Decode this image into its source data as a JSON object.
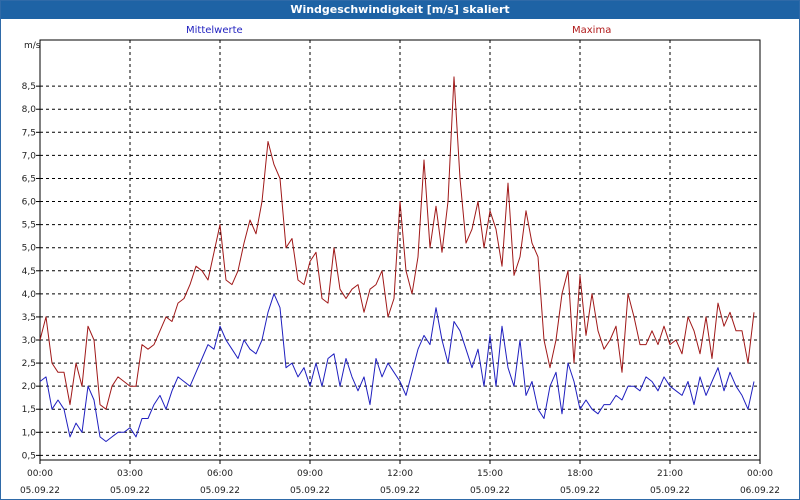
{
  "window": {
    "title": "Windgeschwindigkeit [m/s] skaliert"
  },
  "legend": {
    "mean": "Mittelwerte",
    "max": "Maxima"
  },
  "chart_data": {
    "type": "line",
    "title": "Windgeschwindigkeit [m/s] skaliert",
    "ylabel": "m/s",
    "xlabel": "",
    "ylim": [
      0.4,
      9.5
    ],
    "xlim": [
      0,
      24
    ],
    "grid": true,
    "legend_placement": "top",
    "y_ticks": [
      "0,5",
      "1,0",
      "1,5",
      "2,0",
      "2,5",
      "3,0",
      "3,5",
      "4,0",
      "4,5",
      "5,0",
      "5,5",
      "6,0",
      "6,5",
      "7,0",
      "7,5",
      "8,0",
      "8,5"
    ],
    "x_ticks": [
      {
        "time": "00:00",
        "date": "05.09.22"
      },
      {
        "time": "03:00",
        "date": "05.09.22"
      },
      {
        "time": "06:00",
        "date": "05.09.22"
      },
      {
        "time": "09:00",
        "date": "05.09.22"
      },
      {
        "time": "12:00",
        "date": "05.09.22"
      },
      {
        "time": "15:00",
        "date": "05.09.22"
      },
      {
        "time": "18:00",
        "date": "05.09.22"
      },
      {
        "time": "21:00",
        "date": "05.09.22"
      },
      {
        "time": "00:00",
        "date": "06.09.22"
      }
    ],
    "colors": {
      "mean": "#1f1fbf",
      "max": "#a01818",
      "grid": "#000000"
    },
    "series": [
      {
        "name": "Mittelwerte",
        "x": [
          0,
          0.2,
          0.4,
          0.6,
          0.8,
          1.0,
          1.2,
          1.4,
          1.6,
          1.8,
          2.0,
          2.2,
          2.4,
          2.6,
          2.8,
          3.0,
          3.2,
          3.4,
          3.6,
          3.8,
          4.0,
          4.2,
          4.4,
          4.6,
          4.8,
          5.0,
          5.2,
          5.4,
          5.6,
          5.8,
          6.0,
          6.2,
          6.4,
          6.6,
          6.8,
          7.0,
          7.2,
          7.4,
          7.6,
          7.8,
          8.0,
          8.2,
          8.4,
          8.6,
          8.8,
          9.0,
          9.2,
          9.4,
          9.6,
          9.8,
          10.0,
          10.2,
          10.4,
          10.6,
          10.8,
          11.0,
          11.2,
          11.4,
          11.6,
          11.8,
          12.0,
          12.2,
          12.4,
          12.6,
          12.8,
          13.0,
          13.2,
          13.4,
          13.6,
          13.8,
          14.0,
          14.2,
          14.4,
          14.6,
          14.8,
          15.0,
          15.2,
          15.4,
          15.6,
          15.8,
          16.0,
          16.2,
          16.4,
          16.6,
          16.8,
          17.0,
          17.2,
          17.4,
          17.6,
          17.8,
          18.0,
          18.2,
          18.4,
          18.6,
          18.8,
          19.0,
          19.2,
          19.4,
          19.6,
          19.8,
          20.0,
          20.2,
          20.4,
          20.6,
          20.8,
          21.0,
          21.2,
          21.4,
          21.6,
          21.8,
          22.0,
          22.2,
          22.4,
          22.6,
          22.8,
          23.0,
          23.2,
          23.4,
          23.6,
          23.8
        ],
        "values": [
          2.1,
          2.2,
          1.5,
          1.7,
          1.5,
          0.9,
          1.2,
          1.0,
          2.0,
          1.7,
          0.9,
          0.8,
          0.9,
          1.0,
          1.0,
          1.1,
          0.9,
          1.3,
          1.3,
          1.6,
          1.8,
          1.5,
          1.9,
          2.2,
          2.1,
          2.0,
          2.3,
          2.6,
          2.9,
          2.8,
          3.3,
          3.0,
          2.8,
          2.6,
          3.0,
          2.8,
          2.7,
          3.0,
          3.6,
          4.0,
          3.7,
          2.4,
          2.5,
          2.2,
          2.4,
          2.0,
          2.5,
          2.0,
          2.6,
          2.7,
          2.0,
          2.6,
          2.2,
          1.9,
          2.2,
          1.6,
          2.6,
          2.2,
          2.5,
          2.3,
          2.1,
          1.8,
          2.3,
          2.8,
          3.1,
          2.9,
          3.7,
          3.0,
          2.5,
          3.4,
          3.2,
          2.8,
          2.4,
          2.8,
          2.0,
          3.1,
          2.0,
          3.3,
          2.4,
          2.0,
          3.0,
          1.8,
          2.1,
          1.5,
          1.3,
          2.0,
          2.3,
          1.4,
          2.5,
          2.1,
          1.5,
          1.7,
          1.5,
          1.4,
          1.6,
          1.6,
          1.8,
          1.7,
          2.0,
          2.0,
          1.9,
          2.2,
          2.1,
          1.9,
          2.2,
          2.0,
          1.9,
          1.8,
          2.1,
          1.6,
          2.2,
          1.8,
          2.1,
          2.4,
          1.9,
          2.3,
          2.0,
          1.8,
          1.5,
          2.1
        ]
      },
      {
        "name": "Maxima",
        "x": [
          0,
          0.2,
          0.4,
          0.6,
          0.8,
          1.0,
          1.2,
          1.4,
          1.6,
          1.8,
          2.0,
          2.2,
          2.4,
          2.6,
          2.8,
          3.0,
          3.2,
          3.4,
          3.6,
          3.8,
          4.0,
          4.2,
          4.4,
          4.6,
          4.8,
          5.0,
          5.2,
          5.4,
          5.6,
          5.8,
          6.0,
          6.2,
          6.4,
          6.6,
          6.8,
          7.0,
          7.2,
          7.4,
          7.6,
          7.8,
          8.0,
          8.2,
          8.4,
          8.6,
          8.8,
          9.0,
          9.2,
          9.4,
          9.6,
          9.8,
          10.0,
          10.2,
          10.4,
          10.6,
          10.8,
          11.0,
          11.2,
          11.4,
          11.6,
          11.8,
          12.0,
          12.2,
          12.4,
          12.6,
          12.8,
          13.0,
          13.2,
          13.4,
          13.6,
          13.8,
          14.0,
          14.2,
          14.4,
          14.6,
          14.8,
          15.0,
          15.2,
          15.4,
          15.6,
          15.8,
          16.0,
          16.2,
          16.4,
          16.6,
          16.8,
          17.0,
          17.2,
          17.4,
          17.6,
          17.8,
          18.0,
          18.2,
          18.4,
          18.6,
          18.8,
          19.0,
          19.2,
          19.4,
          19.6,
          19.8,
          20.0,
          20.2,
          20.4,
          20.6,
          20.8,
          21.0,
          21.2,
          21.4,
          21.6,
          21.8,
          22.0,
          22.2,
          22.4,
          22.6,
          22.8,
          23.0,
          23.2,
          23.4,
          23.6,
          23.8
        ],
        "values": [
          3.0,
          3.5,
          2.5,
          2.3,
          2.3,
          1.6,
          2.5,
          2.0,
          3.3,
          3.0,
          1.6,
          1.5,
          2.0,
          2.2,
          2.1,
          2.0,
          2.0,
          2.9,
          2.8,
          2.9,
          3.2,
          3.5,
          3.4,
          3.8,
          3.9,
          4.2,
          4.6,
          4.5,
          4.3,
          4.9,
          5.5,
          4.3,
          4.2,
          4.5,
          5.1,
          5.6,
          5.3,
          6.0,
          7.3,
          6.8,
          6.5,
          5.0,
          5.2,
          4.3,
          4.2,
          4.7,
          4.9,
          3.9,
          3.8,
          5.0,
          4.1,
          3.9,
          4.1,
          4.2,
          3.6,
          4.1,
          4.2,
          4.5,
          3.5,
          3.9,
          6.0,
          4.5,
          4.0,
          4.8,
          6.9,
          5.0,
          5.9,
          4.9,
          6.0,
          8.7,
          6.5,
          5.1,
          5.4,
          6.0,
          5.0,
          5.8,
          5.4,
          4.6,
          6.4,
          4.4,
          4.8,
          5.8,
          5.1,
          4.8,
          3.0,
          2.4,
          3.0,
          4.0,
          4.5,
          2.5,
          4.4,
          3.1,
          4.0,
          3.2,
          2.8,
          3.0,
          3.3,
          2.3,
          4.0,
          3.5,
          2.9,
          2.9,
          3.2,
          2.9,
          3.3,
          2.9,
          3.0,
          2.7,
          3.5,
          3.2,
          2.7,
          3.5,
          2.6,
          3.8,
          3.3,
          3.6,
          3.2,
          3.2,
          2.5,
          3.6
        ]
      }
    ]
  }
}
